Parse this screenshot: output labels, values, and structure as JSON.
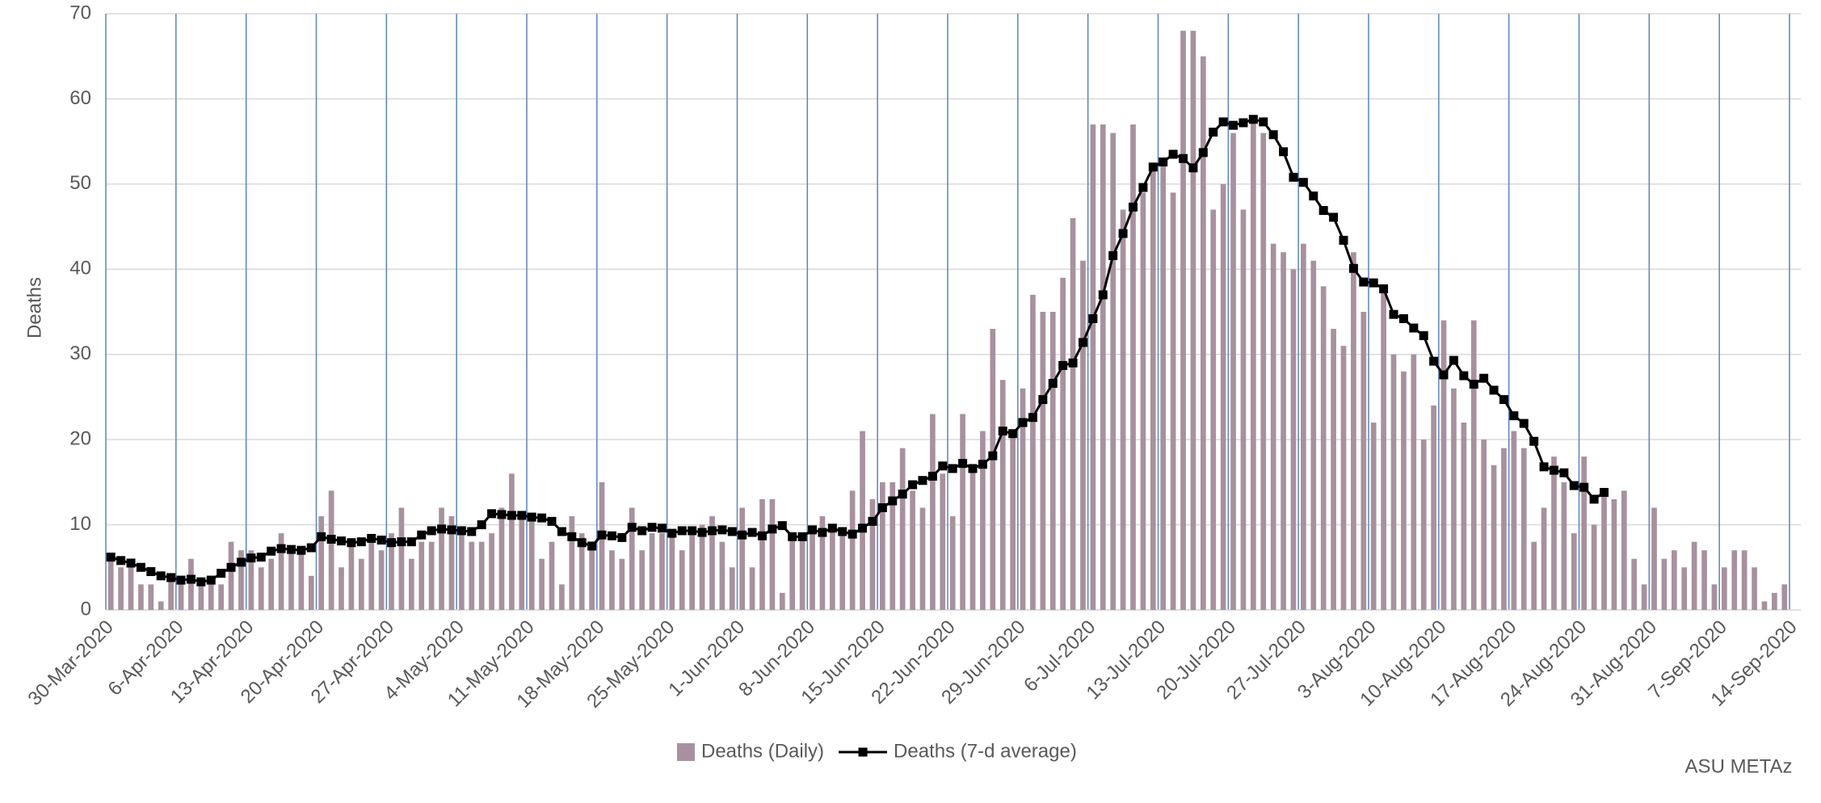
{
  "chart_data": {
    "type": "combo",
    "ylabel": "Deaths",
    "annotation": "ASU METAz",
    "ylim": [
      0,
      70
    ],
    "yticks": [
      0,
      10,
      20,
      30,
      40,
      50,
      60,
      70
    ],
    "grid": true,
    "legend": "bottom",
    "categories": [
      "30-Mar-2020",
      null,
      null,
      null,
      null,
      null,
      null,
      "6-Apr-2020",
      null,
      null,
      null,
      null,
      null,
      null,
      "13-Apr-2020",
      null,
      null,
      null,
      null,
      null,
      null,
      "20-Apr-2020",
      null,
      null,
      null,
      null,
      null,
      null,
      "27-Apr-2020",
      null,
      null,
      null,
      null,
      null,
      null,
      "4-May-2020",
      null,
      null,
      null,
      null,
      null,
      null,
      "11-May-2020",
      null,
      null,
      null,
      null,
      null,
      null,
      "18-May-2020",
      null,
      null,
      null,
      null,
      null,
      null,
      "25-May-2020",
      null,
      null,
      null,
      null,
      null,
      null,
      "1-Jun-2020",
      null,
      null,
      null,
      null,
      null,
      null,
      "8-Jun-2020",
      null,
      null,
      null,
      null,
      null,
      null,
      "15-Jun-2020",
      null,
      null,
      null,
      null,
      null,
      null,
      "22-Jun-2020",
      null,
      null,
      null,
      null,
      null,
      null,
      "29-Jun-2020",
      null,
      null,
      null,
      null,
      null,
      null,
      "6-Jul-2020",
      null,
      null,
      null,
      null,
      null,
      null,
      "13-Jul-2020",
      null,
      null,
      null,
      null,
      null,
      null,
      "20-Jul-2020",
      null,
      null,
      null,
      null,
      null,
      null,
      "27-Jul-2020",
      null,
      null,
      null,
      null,
      null,
      null,
      "3-Aug-2020",
      null,
      null,
      null,
      null,
      null,
      null,
      "10-Aug-2020",
      null,
      null,
      null,
      null,
      null,
      null,
      "17-Aug-2020",
      null,
      null,
      null,
      null,
      null,
      null,
      "24-Aug-2020",
      null,
      null,
      null,
      null,
      null,
      null,
      "31-Aug-2020",
      null,
      null,
      null,
      null,
      null,
      null,
      "7-Sep-2020",
      null,
      null,
      null,
      null,
      null,
      null,
      "14-Sep-2020"
    ],
    "series": [
      {
        "name": "Deaths (Daily)",
        "type": "bar",
        "color": "#a8919f",
        "values": [
          6,
          5,
          6,
          3,
          3,
          1,
          4,
          3,
          6,
          3,
          4,
          3,
          8,
          7,
          7,
          5,
          6,
          9,
          7,
          7,
          4,
          11,
          14,
          5,
          8,
          6,
          8,
          7,
          9,
          12,
          6,
          8,
          8,
          12,
          11,
          9,
          8,
          8,
          9,
          12,
          16,
          11,
          11,
          6,
          8,
          3,
          11,
          9,
          8,
          15,
          7,
          6,
          12,
          7,
          9,
          9,
          9,
          7,
          9,
          10,
          11,
          8,
          5,
          12,
          5,
          13,
          13,
          2,
          9,
          9,
          9,
          11,
          10,
          9,
          14,
          21,
          13,
          15,
          15,
          19,
          14,
          12,
          23,
          16,
          11,
          23,
          17,
          21,
          33,
          27,
          21,
          26,
          37,
          35,
          35,
          39,
          46,
          41,
          57,
          57,
          56,
          47,
          57,
          49,
          52,
          53,
          49,
          68,
          68,
          65,
          47,
          50,
          56,
          47,
          58,
          56,
          43,
          42,
          40,
          43,
          41,
          38,
          33,
          31,
          42,
          35,
          22,
          38,
          30,
          28,
          30,
          20,
          24,
          34,
          26,
          22,
          34,
          20,
          17,
          19,
          21,
          19,
          8,
          12,
          18,
          15,
          9,
          18,
          10,
          14,
          13,
          14,
          6,
          3,
          12,
          6,
          7,
          5,
          8,
          7,
          3,
          5,
          7,
          7,
          5,
          1,
          2,
          3,
          null
        ]
      },
      {
        "name": "Deaths (7-d average)",
        "type": "line",
        "color": "#000000",
        "values": [
          6.2,
          5.8,
          5.5,
          5.0,
          4.5,
          4.0,
          3.8,
          3.5,
          3.6,
          3.3,
          3.5,
          4.3,
          5.0,
          5.6,
          6.1,
          6.2,
          6.9,
          7.2,
          7.1,
          7.0,
          7.3,
          8.6,
          8.3,
          8.1,
          7.9,
          8.0,
          8.4,
          8.2,
          7.9,
          8.0,
          8.0,
          8.8,
          9.3,
          9.5,
          9.4,
          9.3,
          9.2,
          10.0,
          11.3,
          11.2,
          11.1,
          11.1,
          10.9,
          10.8,
          10.4,
          9.2,
          8.6,
          7.9,
          7.5,
          8.8,
          8.7,
          8.5,
          9.7,
          9.3,
          9.7,
          9.6,
          9.0,
          9.3,
          9.3,
          9.1,
          9.3,
          9.4,
          9.2,
          8.8,
          9.1,
          8.7,
          9.5,
          9.9,
          8.6,
          8.6,
          9.4,
          9.1,
          9.6,
          9.2,
          8.9,
          9.6,
          10.4,
          12.0,
          12.8,
          13.6,
          14.7,
          15.2,
          15.7,
          16.9,
          16.6,
          17.2,
          16.6,
          17.1,
          18.1,
          21.0,
          20.7,
          22.0,
          22.6,
          24.7,
          26.6,
          28.7,
          29.0,
          31.4,
          34.2,
          37.0,
          41.6,
          44.2,
          47.3,
          49.6,
          52.0,
          52.6,
          53.5,
          53.0,
          51.9,
          53.7,
          56.1,
          57.3,
          56.9,
          57.2,
          57.6,
          57.3,
          55.8,
          53.8,
          50.8,
          50.2,
          48.6,
          46.9,
          46.1,
          43.4,
          40.1,
          38.5,
          38.4,
          37.7,
          34.7,
          34.2,
          33.1,
          32.2,
          29.2,
          27.6,
          29.3,
          27.5,
          26.5,
          27.2,
          25.8,
          24.7,
          22.8,
          21.9,
          19.8,
          16.8,
          16.4,
          16.1,
          14.6,
          14.4,
          13.0,
          13.8,
          null,
          null,
          null,
          null,
          null,
          null,
          null,
          null,
          null,
          null,
          null,
          null,
          null,
          null,
          null,
          null,
          null,
          null,
          null
        ]
      }
    ]
  }
}
